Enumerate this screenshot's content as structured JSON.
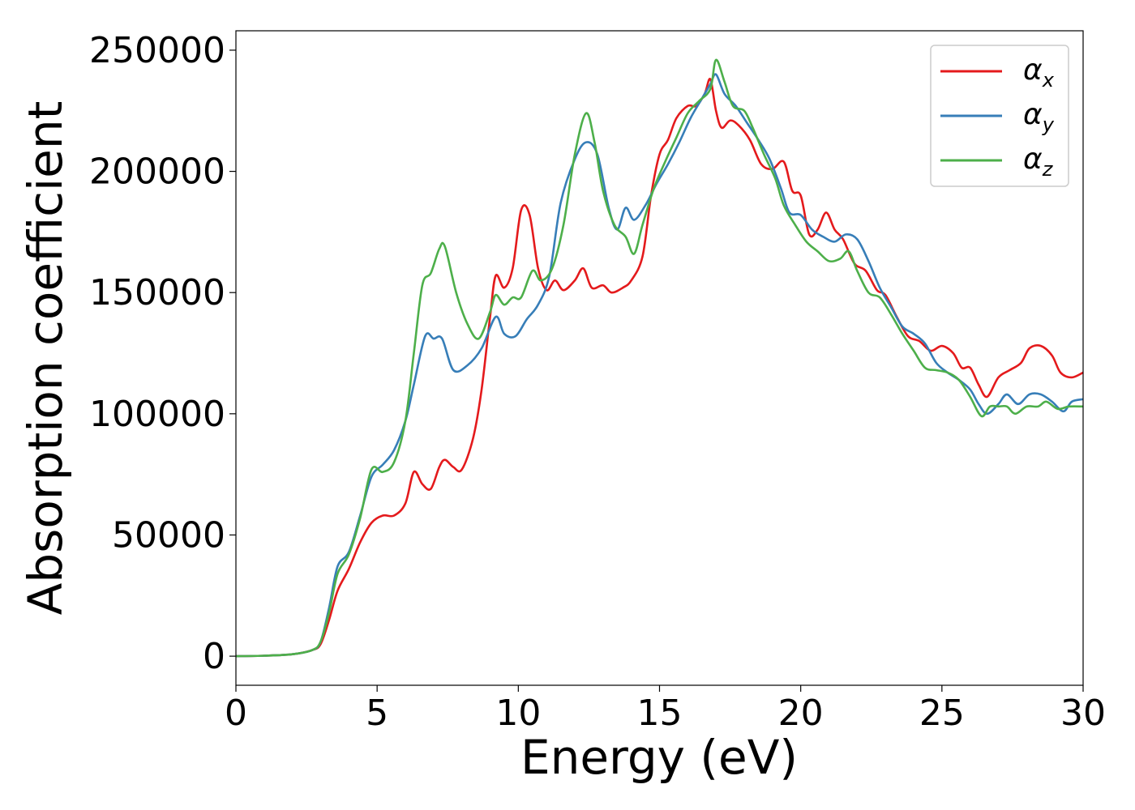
{
  "chart_data": {
    "type": "line",
    "title": "",
    "xlabel": "Energy (eV)",
    "ylabel": "Absorption coefficient",
    "xlim": [
      0,
      30
    ],
    "ylim": [
      -12000,
      258000
    ],
    "xticks": [
      0,
      5,
      10,
      15,
      20,
      25,
      30
    ],
    "xtick_labels": [
      "0",
      "5",
      "10",
      "15",
      "20",
      "25",
      "30"
    ],
    "yticks": [
      0,
      50000,
      100000,
      150000,
      200000,
      250000
    ],
    "ytick_labels": [
      "0",
      "50000",
      "100000",
      "150000",
      "200000",
      "250000"
    ],
    "grid": false,
    "legend_position": "top-right",
    "series": [
      {
        "name": "α_x",
        "label_main": "α",
        "label_sub": "x",
        "color": "#e41a1c",
        "points": [
          [
            0,
            0
          ],
          [
            1,
            200
          ],
          [
            2,
            800
          ],
          [
            2.7,
            2500
          ],
          [
            3,
            5000
          ],
          [
            3.3,
            15000
          ],
          [
            3.6,
            27000
          ],
          [
            4,
            36000
          ],
          [
            4.4,
            47000
          ],
          [
            4.8,
            55000
          ],
          [
            5.2,
            58000
          ],
          [
            5.6,
            58000
          ],
          [
            6,
            63000
          ],
          [
            6.3,
            76000
          ],
          [
            6.6,
            71000
          ],
          [
            6.9,
            69000
          ],
          [
            7.2,
            78000
          ],
          [
            7.4,
            81000
          ],
          [
            7.7,
            78000
          ],
          [
            8,
            77000
          ],
          [
            8.4,
            90000
          ],
          [
            8.7,
            110000
          ],
          [
            9,
            140000
          ],
          [
            9.2,
            157000
          ],
          [
            9.5,
            152000
          ],
          [
            9.8,
            160000
          ],
          [
            10.1,
            184000
          ],
          [
            10.4,
            182000
          ],
          [
            10.7,
            160000
          ],
          [
            11,
            151000
          ],
          [
            11.3,
            155000
          ],
          [
            11.6,
            151000
          ],
          [
            12,
            155000
          ],
          [
            12.3,
            160000
          ],
          [
            12.6,
            152000
          ],
          [
            13,
            153000
          ],
          [
            13.3,
            150000
          ],
          [
            13.7,
            152000
          ],
          [
            14,
            155000
          ],
          [
            14.4,
            165000
          ],
          [
            14.7,
            190000
          ],
          [
            15,
            207000
          ],
          [
            15.3,
            213000
          ],
          [
            15.6,
            222000
          ],
          [
            16,
            227000
          ],
          [
            16.3,
            227000
          ],
          [
            16.6,
            232000
          ],
          [
            16.8,
            238000
          ],
          [
            17,
            225000
          ],
          [
            17.2,
            218000
          ],
          [
            17.5,
            221000
          ],
          [
            17.8,
            219000
          ],
          [
            18.2,
            213000
          ],
          [
            18.6,
            203000
          ],
          [
            19,
            201000
          ],
          [
            19.4,
            204000
          ],
          [
            19.7,
            192000
          ],
          [
            20,
            190000
          ],
          [
            20.3,
            174000
          ],
          [
            20.6,
            176000
          ],
          [
            20.9,
            183000
          ],
          [
            21.2,
            176000
          ],
          [
            21.5,
            172000
          ],
          [
            21.9,
            162000
          ],
          [
            22.3,
            159000
          ],
          [
            22.7,
            151000
          ],
          [
            23,
            149000
          ],
          [
            23.4,
            140000
          ],
          [
            23.8,
            132000
          ],
          [
            24.2,
            130000
          ],
          [
            24.6,
            126000
          ],
          [
            25,
            128000
          ],
          [
            25.4,
            125000
          ],
          [
            25.7,
            119000
          ],
          [
            26,
            119000
          ],
          [
            26.3,
            112000
          ],
          [
            26.6,
            107000
          ],
          [
            27,
            115000
          ],
          [
            27.4,
            118000
          ],
          [
            27.8,
            121000
          ],
          [
            28.1,
            127000
          ],
          [
            28.5,
            128000
          ],
          [
            28.9,
            124000
          ],
          [
            29.2,
            117000
          ],
          [
            29.6,
            115000
          ],
          [
            30,
            117000
          ]
        ]
      },
      {
        "name": "α_y",
        "label_main": "α",
        "label_sub": "y",
        "color": "#377eb8",
        "points": [
          [
            0,
            0
          ],
          [
            1,
            200
          ],
          [
            2,
            800
          ],
          [
            2.7,
            2500
          ],
          [
            3,
            6000
          ],
          [
            3.3,
            20000
          ],
          [
            3.6,
            37000
          ],
          [
            4,
            43000
          ],
          [
            4.4,
            58000
          ],
          [
            4.8,
            74000
          ],
          [
            5.2,
            79000
          ],
          [
            5.6,
            85000
          ],
          [
            6,
            97000
          ],
          [
            6.3,
            112000
          ],
          [
            6.7,
            132000
          ],
          [
            7,
            131000
          ],
          [
            7.3,
            131000
          ],
          [
            7.7,
            118000
          ],
          [
            8.2,
            120000
          ],
          [
            8.7,
            127000
          ],
          [
            9.2,
            140000
          ],
          [
            9.5,
            133000
          ],
          [
            9.9,
            132000
          ],
          [
            10.3,
            139000
          ],
          [
            10.7,
            145000
          ],
          [
            11.1,
            157000
          ],
          [
            11.5,
            187000
          ],
          [
            12,
            205000
          ],
          [
            12.4,
            212000
          ],
          [
            12.8,
            207000
          ],
          [
            13.2,
            185000
          ],
          [
            13.5,
            176000
          ],
          [
            13.8,
            185000
          ],
          [
            14.1,
            180000
          ],
          [
            14.5,
            186000
          ],
          [
            14.9,
            195000
          ],
          [
            15.3,
            203000
          ],
          [
            15.7,
            212000
          ],
          [
            16.1,
            222000
          ],
          [
            16.5,
            230000
          ],
          [
            16.8,
            236000
          ],
          [
            17,
            240000
          ],
          [
            17.3,
            232000
          ],
          [
            17.7,
            227000
          ],
          [
            18.1,
            220000
          ],
          [
            18.5,
            213000
          ],
          [
            18.9,
            205000
          ],
          [
            19.3,
            193000
          ],
          [
            19.6,
            183000
          ],
          [
            20,
            182000
          ],
          [
            20.4,
            176000
          ],
          [
            20.8,
            173000
          ],
          [
            21.2,
            171000
          ],
          [
            21.6,
            174000
          ],
          [
            22,
            172000
          ],
          [
            22.4,
            163000
          ],
          [
            22.8,
            152000
          ],
          [
            23.2,
            144000
          ],
          [
            23.6,
            136000
          ],
          [
            24,
            133000
          ],
          [
            24.4,
            129000
          ],
          [
            24.8,
            121000
          ],
          [
            25.2,
            117000
          ],
          [
            25.6,
            114000
          ],
          [
            26,
            110000
          ],
          [
            26.3,
            104000
          ],
          [
            26.6,
            100000
          ],
          [
            27,
            104000
          ],
          [
            27.3,
            108000
          ],
          [
            27.7,
            104000
          ],
          [
            28.1,
            108000
          ],
          [
            28.5,
            108000
          ],
          [
            28.9,
            105000
          ],
          [
            29.3,
            101000
          ],
          [
            29.6,
            105000
          ],
          [
            30,
            106000
          ]
        ]
      },
      {
        "name": "α_z",
        "label_main": "α",
        "label_sub": "z",
        "color": "#4daf4a",
        "points": [
          [
            0,
            0
          ],
          [
            1,
            200
          ],
          [
            2,
            800
          ],
          [
            2.7,
            2500
          ],
          [
            3,
            6000
          ],
          [
            3.3,
            18000
          ],
          [
            3.6,
            34000
          ],
          [
            4,
            42000
          ],
          [
            4.4,
            57000
          ],
          [
            4.8,
            77000
          ],
          [
            5.2,
            76000
          ],
          [
            5.6,
            80000
          ],
          [
            6,
            97000
          ],
          [
            6.3,
            125000
          ],
          [
            6.6,
            153000
          ],
          [
            6.9,
            158000
          ],
          [
            7.2,
            168000
          ],
          [
            7.4,
            169000
          ],
          [
            7.8,
            150000
          ],
          [
            8.2,
            137000
          ],
          [
            8.6,
            131000
          ],
          [
            9,
            142000
          ],
          [
            9.2,
            149000
          ],
          [
            9.5,
            145000
          ],
          [
            9.8,
            148000
          ],
          [
            10.1,
            148000
          ],
          [
            10.5,
            159000
          ],
          [
            10.8,
            155000
          ],
          [
            11.2,
            160000
          ],
          [
            11.6,
            178000
          ],
          [
            12,
            207000
          ],
          [
            12.4,
            224000
          ],
          [
            12.7,
            212000
          ],
          [
            13,
            192000
          ],
          [
            13.4,
            178000
          ],
          [
            13.8,
            173000
          ],
          [
            14.1,
            166000
          ],
          [
            14.4,
            178000
          ],
          [
            14.8,
            193000
          ],
          [
            15.2,
            204000
          ],
          [
            15.6,
            214000
          ],
          [
            16,
            224000
          ],
          [
            16.4,
            229000
          ],
          [
            16.8,
            234000
          ],
          [
            17,
            246000
          ],
          [
            17.3,
            237000
          ],
          [
            17.6,
            227000
          ],
          [
            18,
            225000
          ],
          [
            18.3,
            218000
          ],
          [
            18.7,
            207000
          ],
          [
            19.1,
            197000
          ],
          [
            19.4,
            186000
          ],
          [
            19.8,
            178000
          ],
          [
            20.2,
            171000
          ],
          [
            20.6,
            167000
          ],
          [
            21,
            163000
          ],
          [
            21.4,
            164000
          ],
          [
            21.7,
            167000
          ],
          [
            22,
            159000
          ],
          [
            22.4,
            150000
          ],
          [
            22.8,
            148000
          ],
          [
            23.2,
            141000
          ],
          [
            23.6,
            133000
          ],
          [
            24,
            126000
          ],
          [
            24.4,
            119000
          ],
          [
            24.8,
            118000
          ],
          [
            25.2,
            117000
          ],
          [
            25.6,
            114000
          ],
          [
            26,
            107000
          ],
          [
            26.4,
            99000
          ],
          [
            26.7,
            103000
          ],
          [
            27,
            103000
          ],
          [
            27.3,
            103000
          ],
          [
            27.6,
            100000
          ],
          [
            28,
            103000
          ],
          [
            28.4,
            103000
          ],
          [
            28.7,
            105000
          ],
          [
            29.1,
            102000
          ],
          [
            29.5,
            103000
          ],
          [
            30,
            103000
          ]
        ]
      }
    ]
  }
}
